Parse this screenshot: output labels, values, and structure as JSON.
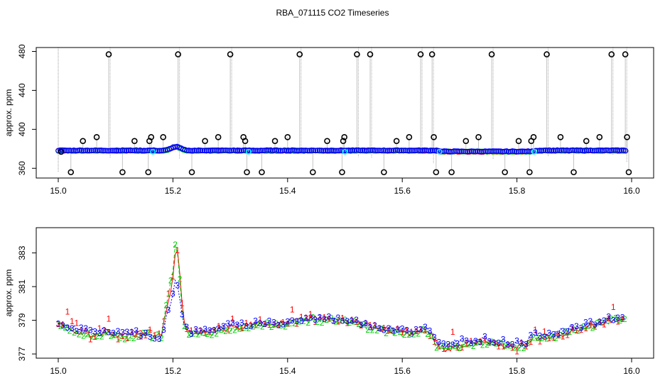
{
  "chart_data": [
    {
      "type": "scatter",
      "title": "RBA_071115  CO2 Timeseries",
      "xlabel": "",
      "ylabel": "approx. ppm",
      "xlim": [
        15.0,
        16.0
      ],
      "ylim": [
        350,
        484
      ],
      "x_ticks": [
        "15.0",
        "15.2",
        "15.4",
        "15.6",
        "15.8",
        "16.0"
      ],
      "y_ticks": [
        "360",
        "400",
        "440",
        "480"
      ],
      "spike_markers": {
        "name": "outliers (black circles)",
        "x": [
          15.005,
          15.022,
          15.043,
          15.067,
          15.088,
          15.112,
          15.133,
          15.157,
          15.159,
          15.162,
          15.183,
          15.209,
          15.233,
          15.256,
          15.279,
          15.3,
          15.323,
          15.326,
          15.329,
          15.355,
          15.378,
          15.4,
          15.421,
          15.444,
          15.469,
          15.495,
          15.497,
          15.499,
          15.521,
          15.544,
          15.568,
          15.59,
          15.612,
          15.632,
          15.652,
          15.655,
          15.659,
          15.686,
          15.711,
          15.733,
          15.756,
          15.779,
          15.803,
          15.822,
          15.825,
          15.829,
          15.852,
          15.876,
          15.899,
          15.921,
          15.944,
          15.965,
          15.989,
          15.992,
          15.995
        ],
        "y": [
          377,
          356,
          388,
          392,
          477,
          356,
          388,
          356,
          388,
          392,
          392,
          477,
          356,
          388,
          392,
          477,
          392,
          388,
          356,
          356,
          388,
          392,
          477,
          356,
          388,
          356,
          388,
          392,
          477,
          477,
          356,
          388,
          392,
          477,
          477,
          392,
          356,
          356,
          388,
          392,
          477,
          356,
          388,
          356,
          388,
          392,
          477,
          392,
          356,
          388,
          392,
          477,
          477,
          392,
          356
        ]
      },
      "series": [
        {
          "name": "1",
          "color": "#ff0000",
          "style": "line with markers",
          "x_range": [
            15.0,
            15.99
          ],
          "approx_level": 378
        },
        {
          "name": "2",
          "color": "#00cd00",
          "style": "line with markers",
          "x_range": [
            15.0,
            15.99
          ],
          "approx_level": 378
        },
        {
          "name": "3",
          "color": "#0000ff",
          "style": "line with markers",
          "x_range": [
            15.0,
            15.99
          ],
          "approx_level": 378
        },
        {
          "name": "segment starts",
          "color": "#00ffff",
          "x": [
            15.165,
            15.332,
            15.5,
            15.665,
            15.83
          ]
        }
      ]
    },
    {
      "type": "line",
      "title": "",
      "xlabel": "",
      "ylabel": "approx. ppm",
      "xlim": [
        15.0,
        16.0
      ],
      "ylim": [
        376.75,
        384.5
      ],
      "x_ticks": [
        "15.0",
        "15.2",
        "15.4",
        "15.6",
        "15.8",
        "16.0"
      ],
      "y_ticks": [
        "377",
        "379",
        "381",
        "383"
      ],
      "x": [
        15.0,
        15.02,
        15.04,
        15.06,
        15.08,
        15.1,
        15.12,
        15.14,
        15.16,
        15.17,
        15.18,
        15.19,
        15.2,
        15.205,
        15.21,
        15.215,
        15.22,
        15.23,
        15.24,
        15.26,
        15.28,
        15.3,
        15.32,
        15.333,
        15.36,
        15.38,
        15.4,
        15.42,
        15.44,
        15.46,
        15.48,
        15.49,
        15.5,
        15.52,
        15.54,
        15.56,
        15.58,
        15.6,
        15.62,
        15.64,
        15.65,
        15.66,
        15.67,
        15.68,
        15.7,
        15.72,
        15.74,
        15.76,
        15.78,
        15.8,
        15.815,
        15.83,
        15.85,
        15.87,
        15.89,
        15.91,
        15.93,
        15.95,
        15.97,
        15.985
      ],
      "series": [
        {
          "name": "1",
          "color": "#ff0000",
          "marker_label": "1",
          "values": [
            378.9,
            378.5,
            378.3,
            378.1,
            378.3,
            378.2,
            378.1,
            378.2,
            378.3,
            378.2,
            378.2,
            379.7,
            381.5,
            383.2,
            383.0,
            380.2,
            378.8,
            378.3,
            378.2,
            378.3,
            378.5,
            378.6,
            378.6,
            378.8,
            378.9,
            378.8,
            378.9,
            379.0,
            379.1,
            379.1,
            379.1,
            379.0,
            379.0,
            378.9,
            378.7,
            378.5,
            378.4,
            378.3,
            378.2,
            378.4,
            378.1,
            377.7,
            377.2,
            377.3,
            377.5,
            377.6,
            377.7,
            377.6,
            377.5,
            377.5,
            377.6,
            377.9,
            378.0,
            378.1,
            378.3,
            378.5,
            378.7,
            378.9,
            379.0,
            379.2
          ]
        },
        {
          "name": "2",
          "color": "#00cd00",
          "marker_label": "2",
          "values": [
            378.8,
            378.4,
            378.2,
            378.0,
            378.2,
            378.1,
            378.0,
            378.1,
            378.1,
            378.1,
            378.1,
            380.2,
            382.0,
            383.8,
            382.3,
            379.8,
            378.6,
            378.2,
            378.1,
            378.2,
            378.4,
            378.5,
            378.5,
            378.7,
            378.8,
            378.7,
            378.8,
            378.9,
            379.0,
            379.0,
            379.0,
            378.9,
            378.9,
            378.8,
            378.6,
            378.4,
            378.3,
            378.2,
            378.2,
            378.4,
            378.0,
            377.5,
            377.3,
            377.4,
            377.5,
            377.6,
            377.7,
            377.6,
            377.5,
            377.5,
            377.5,
            377.9,
            378.0,
            378.1,
            378.2,
            378.4,
            378.6,
            378.8,
            379.0,
            379.1
          ]
        },
        {
          "name": "3",
          "color": "#0000ff",
          "marker_label": "3",
          "values": [
            378.9,
            378.6,
            378.4,
            378.3,
            378.4,
            378.3,
            378.2,
            378.3,
            378.1,
            378.0,
            378.0,
            379.3,
            380.6,
            381.7,
            380.9,
            379.4,
            378.6,
            378.3,
            378.3,
            378.4,
            378.6,
            378.7,
            378.7,
            378.8,
            378.9,
            378.8,
            378.9,
            379.0,
            379.1,
            379.1,
            379.1,
            379.0,
            379.1,
            378.9,
            378.8,
            378.6,
            378.5,
            378.5,
            378.3,
            378.5,
            378.2,
            377.7,
            377.5,
            377.6,
            377.8,
            377.8,
            377.9,
            377.8,
            377.7,
            377.7,
            377.7,
            378.1,
            378.2,
            378.3,
            378.5,
            378.6,
            378.8,
            379.0,
            379.1,
            379.3
          ]
        }
      ]
    }
  ]
}
